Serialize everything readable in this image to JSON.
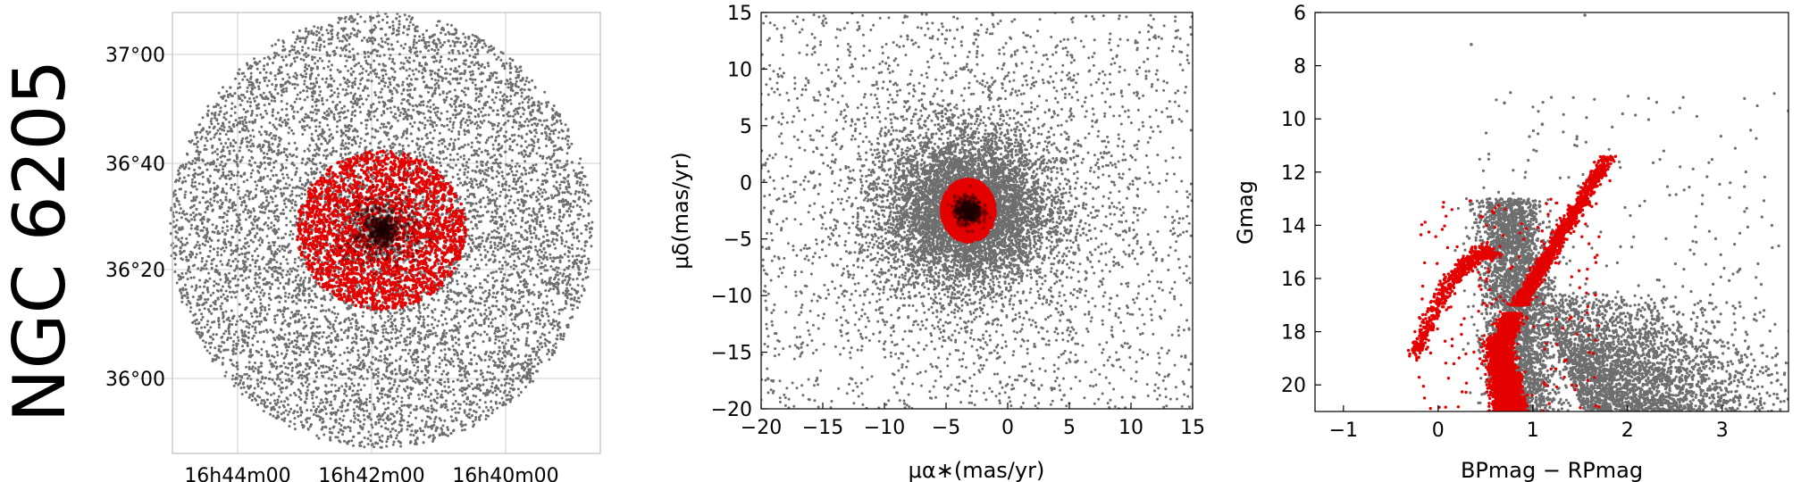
{
  "title": "NGC 6205",
  "colors": {
    "field": "#6e6e6e",
    "members": "#e50000",
    "core": "#1a0000"
  },
  "chart_data": [
    {
      "type": "scatter",
      "panel": "sky",
      "xlabel": "",
      "ylabel": "",
      "x_ticks": [
        "16h44m00",
        "16h42m00",
        "16h40m00"
      ],
      "y_ticks": [
        "37°00",
        "36°40",
        "36°20",
        "36°00"
      ],
      "grid": true,
      "series": [
        {
          "role": "field",
          "center_ra_deg": 250.42,
          "center_dec_deg": 36.46,
          "radius_deg": 0.8
        },
        {
          "role": "members",
          "center_ra_deg": 250.42,
          "center_dec_deg": 36.46,
          "radius_deg": 0.25
        }
      ]
    },
    {
      "type": "scatter",
      "panel": "proper-motion",
      "xlabel": "μα∗(mas/yr)",
      "ylabel": "μδ(mas/yr)",
      "xlim": [
        -20,
        15
      ],
      "ylim": [
        -20,
        15
      ],
      "x_ticks": [
        -20,
        -15,
        -10,
        -5,
        0,
        5,
        10,
        15
      ],
      "y_ticks": [
        -20,
        -15,
        -10,
        -5,
        0,
        5,
        10,
        15
      ],
      "x_tick_labels": [
        "−20",
        "−15",
        "−10",
        "−5",
        "0",
        "5",
        "10",
        "15"
      ],
      "y_tick_labels": [
        "−20",
        "−15",
        "−10",
        "−5",
        "0",
        "5",
        "10",
        "15"
      ],
      "grid": false,
      "series": [
        {
          "role": "field",
          "center": [
            -3.2,
            -2.5
          ],
          "spread": [
            3.5,
            3.5
          ]
        },
        {
          "role": "members",
          "center": [
            -3.2,
            -2.5
          ],
          "semi_axes": [
            2.2,
            2.8
          ]
        }
      ]
    },
    {
      "type": "scatter",
      "panel": "cmd",
      "xlabel": "BPmag − RPmag",
      "ylabel": "Gmag",
      "xlim": [
        -1.3,
        3.7
      ],
      "ylim": [
        21,
        6
      ],
      "x_ticks": [
        -1,
        0,
        1,
        2,
        3
      ],
      "y_ticks": [
        6,
        8,
        10,
        12,
        14,
        16,
        18,
        20
      ],
      "x_tick_labels": [
        "−1",
        "0",
        "1",
        "2",
        "3"
      ],
      "y_tick_labels": [
        "6",
        "8",
        "10",
        "12",
        "14",
        "16",
        "18",
        "20"
      ],
      "grid": false,
      "series": [
        {
          "role": "field"
        },
        {
          "role": "members"
        }
      ]
    }
  ]
}
